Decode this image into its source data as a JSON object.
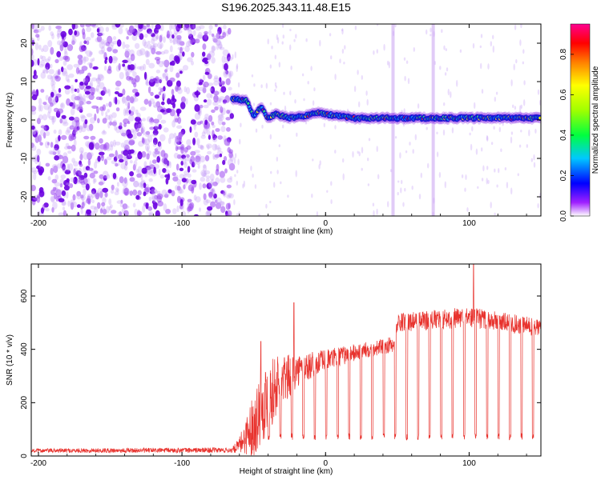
{
  "title": "S196.2025.343.11.48.E15",
  "chart_data": [
    {
      "type": "heatmap",
      "title": "S196.2025.343.11.48.E15",
      "xlabel": "Height of straight line (km)",
      "ylabel": "Frequency (Hz)",
      "xlim": [
        -205,
        150
      ],
      "ylim": [
        -25,
        25
      ],
      "xticks": [
        -200,
        -100,
        0,
        100
      ],
      "yticks": [
        -20,
        -10,
        0,
        10,
        20
      ],
      "colorbar": {
        "label": "Normalized spectral amplitude",
        "range": [
          0.0,
          0.95
        ],
        "ticks": [
          0.0,
          0.2,
          0.4,
          0.6,
          0.8
        ],
        "tick_labels": [
          "0.0",
          "0.2",
          "0.4",
          "0.6",
          "0.8"
        ]
      },
      "features": {
        "noise_region_km": [
          -205,
          -65
        ],
        "signal_track": [
          {
            "x": -65,
            "y": 5.5
          },
          {
            "x": -55,
            "y": 5.0
          },
          {
            "x": -50,
            "y": 1.0
          },
          {
            "x": -45,
            "y": 3.5
          },
          {
            "x": -40,
            "y": 0.5
          },
          {
            "x": -35,
            "y": 1.5
          },
          {
            "x": -25,
            "y": 0.5
          },
          {
            "x": -15,
            "y": 1.0
          },
          {
            "x": -5,
            "y": 2.0
          },
          {
            "x": 0,
            "y": 1.5
          },
          {
            "x": 20,
            "y": 0.5
          },
          {
            "x": 50,
            "y": 0.5
          },
          {
            "x": 100,
            "y": 0.5
          },
          {
            "x": 150,
            "y": 0.5
          }
        ],
        "vertical_stripes_km": [
          47,
          75
        ]
      }
    },
    {
      "type": "line",
      "xlabel": "Height of straight line (km)",
      "ylabel": "SNR (10 * v/v)",
      "xlim": [
        -205,
        150
      ],
      "ylim": [
        0,
        720
      ],
      "xticks": [
        -200,
        -100,
        0,
        100
      ],
      "yticks": [
        0,
        200,
        400,
        600
      ],
      "color": "#e8332e",
      "series": [
        {
          "name": "SNR",
          "envelope": [
            {
              "x": -205,
              "base": 20,
              "noise": 8
            },
            {
              "x": -65,
              "base": 22,
              "noise": 10
            },
            {
              "x": -60,
              "base": 40,
              "noise": 30
            },
            {
              "x": -50,
              "base": 120,
              "noise": 120
            },
            {
              "x": -45,
              "base": 180,
              "noise": 140
            },
            {
              "x": -35,
              "base": 260,
              "noise": 120
            },
            {
              "x": -20,
              "base": 320,
              "noise": 60
            },
            {
              "x": 0,
              "base": 360,
              "noise": 40
            },
            {
              "x": 30,
              "base": 400,
              "noise": 30
            },
            {
              "x": 48,
              "base": 420,
              "noise": 30
            },
            {
              "x": 50,
              "base": 500,
              "noise": 35
            },
            {
              "x": 100,
              "base": 520,
              "noise": 40
            },
            {
              "x": 150,
              "base": 480,
              "noise": 35
            }
          ],
          "dropouts_start_km": -40,
          "dropout_spacing_km": 8,
          "dropout_floor": 60,
          "peaks": [
            {
              "x": -45,
              "y": 430
            },
            {
              "x": -22,
              "y": 575
            },
            {
              "x": 103,
              "y": 720
            }
          ]
        }
      ]
    }
  ]
}
